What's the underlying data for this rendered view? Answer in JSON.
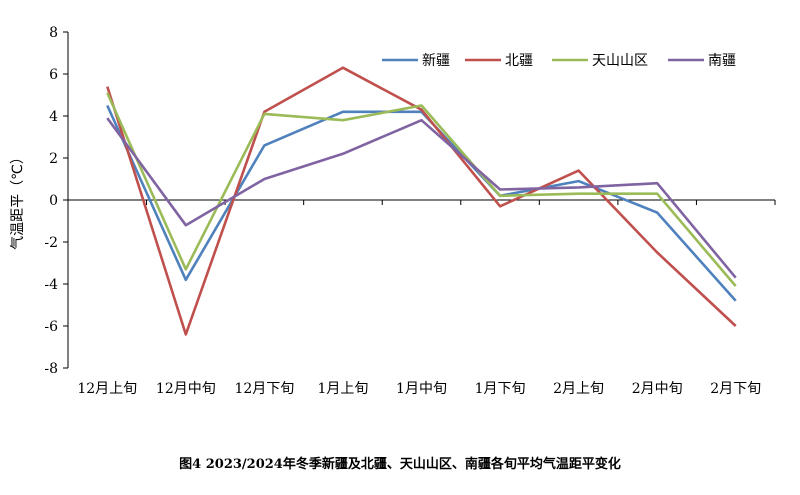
{
  "caption": "图4 2023/2024年冬季新疆及北疆、天山山区、南疆各旬平均气温距平变化",
  "chart_data": {
    "type": "line",
    "title": "图4 2023/2024年冬季新疆及北疆、天山山区、南疆各旬平均气温距平变化",
    "ylabel": "气温距平（℃）",
    "xlabel": "",
    "ylim": [
      -8,
      8
    ],
    "yticks": [
      8,
      6,
      4,
      2,
      0,
      -2,
      -4,
      -6,
      -8
    ],
    "grid": false,
    "legend_position": "top-right",
    "categories": [
      "12月上旬",
      "12月中旬",
      "12月下旬",
      "1月上旬",
      "1月中旬",
      "1月下旬",
      "2月上旬",
      "2月中旬",
      "2月下旬"
    ],
    "series": [
      {
        "name": "新疆",
        "color": "#4f81bd",
        "values": [
          4.5,
          -3.8,
          2.6,
          4.2,
          4.2,
          0.2,
          0.9,
          -0.6,
          -4.8
        ]
      },
      {
        "name": "北疆",
        "color": "#c0504d",
        "values": [
          5.4,
          -6.4,
          4.2,
          6.3,
          4.3,
          -0.3,
          1.4,
          -2.5,
          -6.0
        ]
      },
      {
        "name": "天山山区",
        "color": "#9bbb59",
        "values": [
          5.1,
          -3.3,
          4.1,
          3.8,
          4.5,
          0.2,
          0.3,
          0.3,
          -4.1
        ]
      },
      {
        "name": "南疆",
        "color": "#8064a2",
        "values": [
          3.9,
          -1.2,
          1.0,
          2.2,
          3.8,
          0.5,
          0.6,
          0.8,
          -3.7
        ]
      }
    ]
  }
}
